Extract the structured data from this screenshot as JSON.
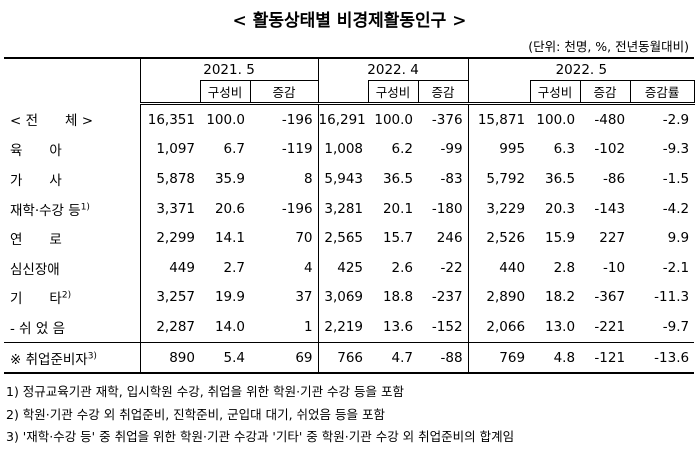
{
  "title": "< 활동상태별 비경제활동인구 >",
  "unit": "(단위: 천명, %, 전년동월대비)",
  "table": {
    "groups": [
      "2021. 5",
      "2022. 4",
      "2022. 5"
    ],
    "subheaders": [
      "구성비",
      "증감",
      "구성비",
      "증감",
      "구성비",
      "증감",
      "증감률"
    ],
    "rows": [
      {
        "label": "< 전　　체 >",
        "cells": [
          "16,351",
          "100.0",
          "-196",
          "16,291",
          "100.0",
          "-376",
          "15,871",
          "100.0",
          "-480",
          "-2.9"
        ]
      },
      {
        "label": "육　　아",
        "cells": [
          "1,097",
          "6.7",
          "-119",
          "1,008",
          "6.2",
          "-99",
          "995",
          "6.3",
          "-102",
          "-9.3"
        ]
      },
      {
        "label": "가　　사",
        "cells": [
          "5,878",
          "35.9",
          "8",
          "5,943",
          "36.5",
          "-83",
          "5,792",
          "36.5",
          "-86",
          "-1.5"
        ]
      },
      {
        "label": "재학·수강 등",
        "note": "1)",
        "cells": [
          "3,371",
          "20.6",
          "-196",
          "3,281",
          "20.1",
          "-180",
          "3,229",
          "20.3",
          "-143",
          "-4.2"
        ]
      },
      {
        "label": "연　　로",
        "cells": [
          "2,299",
          "14.1",
          "70",
          "2,565",
          "15.7",
          "246",
          "2,526",
          "15.9",
          "227",
          "9.9"
        ]
      },
      {
        "label": "심신장애",
        "cells": [
          "449",
          "2.7",
          "4",
          "425",
          "2.6",
          "-22",
          "440",
          "2.8",
          "-10",
          "-2.1"
        ]
      },
      {
        "label": "기　　타",
        "note": "2)",
        "cells": [
          "3,257",
          "19.9",
          "37",
          "3,069",
          "18.8",
          "-237",
          "2,890",
          "18.2",
          "-367",
          "-11.3"
        ]
      },
      {
        "label": "- 쉬 었 음",
        "cells": [
          "2,287",
          "14.0",
          "1",
          "2,219",
          "13.6",
          "-152",
          "2,066",
          "13.0",
          "-221",
          "-9.7"
        ]
      },
      {
        "label": "※ 취업준비자",
        "note": "3)",
        "cells": [
          "890",
          "5.4",
          "69",
          "766",
          "4.7",
          "-88",
          "769",
          "4.8",
          "-121",
          "-13.6"
        ]
      }
    ]
  },
  "footnotes": [
    "1) 정규교육기관 재학, 입시학원 수강, 취업을 위한 학원·기관 수강 등을 포함",
    "2) 학원·기관 수강 외 취업준비, 진학준비, 군입대 대기, 쉬었음 등을 포함",
    "3) '재학·수강 등' 중 취업을 위한 학원·기관 수강과 '기타' 중 학원·기관 수강 외 취업준비의 합계임"
  ]
}
